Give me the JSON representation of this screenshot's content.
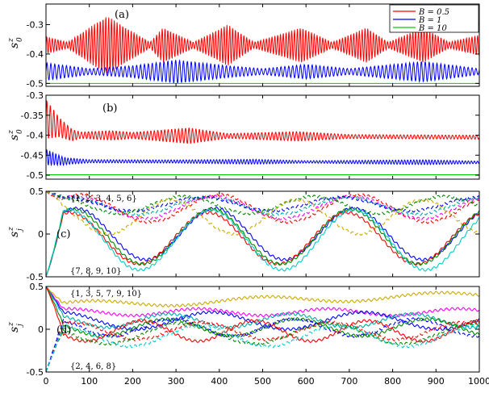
{
  "chart_data": [
    {
      "type": "line",
      "panel_label": "(a)",
      "ylabel": "s",
      "ylabel_sup": "z",
      "ylabel_sub": "0",
      "xlim": [
        0,
        1000
      ],
      "ylim": [
        -0.51,
        -0.23
      ],
      "yticks": [
        -0.3,
        -0.4,
        -0.5
      ],
      "yticklabels": [
        "-0.3",
        "-0.4",
        "-0.5"
      ],
      "legend": {
        "position": "top-right",
        "entries": [
          "B = 0.5",
          "B = 1",
          "B = 10"
        ]
      },
      "series": [
        {
          "name": "B = 0.5",
          "color": "#ff0000",
          "mean": [
            [
              0,
              -0.37
            ],
            [
              1000,
              -0.37
            ]
          ],
          "amplitude": [
            [
              0,
              0.03
            ],
            [
              50,
              0.01
            ],
            [
              140,
              0.1
            ],
            [
              240,
              0.01
            ],
            [
              270,
              0.06
            ],
            [
              340,
              0.01
            ],
            [
              420,
              0.07
            ],
            [
              480,
              0.01
            ],
            [
              590,
              0.06
            ],
            [
              660,
              0.01
            ],
            [
              740,
              0.06
            ],
            [
              790,
              0.01
            ],
            [
              870,
              0.06
            ],
            [
              930,
              0.01
            ],
            [
              1000,
              0.035
            ]
          ],
          "period": 6.5
        },
        {
          "name": "B = 1",
          "color": "#0000ff",
          "mean": [
            [
              0,
              -0.46
            ],
            [
              1000,
              -0.46
            ]
          ],
          "amplitude": [
            [
              0,
              0.03
            ],
            [
              100,
              0.01
            ],
            [
              200,
              0.02
            ],
            [
              300,
              0.04
            ],
            [
              420,
              0.02
            ],
            [
              500,
              0.01
            ],
            [
              600,
              0.025
            ],
            [
              700,
              0.01
            ],
            [
              870,
              0.035
            ],
            [
              1000,
              0.01
            ]
          ],
          "period": 9
        },
        {
          "name": "B = 10",
          "color": "#00cc00",
          "mean": [
            [
              0,
              -0.5
            ],
            [
              1000,
              -0.5
            ]
          ],
          "amplitude": [
            [
              0,
              0
            ],
            [
              1000,
              0
            ]
          ],
          "period": 10
        }
      ]
    },
    {
      "type": "line",
      "panel_label": "(b)",
      "ylabel": "s",
      "ylabel_sup": "z",
      "ylabel_sub": "0",
      "xlim": [
        0,
        1000
      ],
      "ylim": [
        -0.51,
        -0.3
      ],
      "yticks": [
        -0.3,
        -0.35,
        -0.4,
        -0.45,
        -0.5
      ],
      "yticklabels": [
        "-0.3",
        "-0.35",
        "-0.4",
        "-0.45",
        "-0.5"
      ],
      "series": [
        {
          "name": "B = 0.5",
          "color": "#ff0000",
          "mean": [
            [
              0,
              -0.36
            ],
            [
              15,
              -0.37
            ],
            [
              60,
              -0.4
            ],
            [
              1000,
              -0.405
            ]
          ],
          "amplitude": [
            [
              0,
              0.05
            ],
            [
              30,
              0.025
            ],
            [
              80,
              0.008
            ],
            [
              150,
              0.012
            ],
            [
              200,
              0.008
            ],
            [
              330,
              0.02
            ],
            [
              420,
              0.006
            ],
            [
              580,
              0.012
            ],
            [
              700,
              0.005
            ],
            [
              800,
              0.005
            ],
            [
              1000,
              0.005
            ]
          ],
          "period": 8
        },
        {
          "name": "B = 1",
          "color": "#0000ff",
          "mean": [
            [
              0,
              -0.455
            ],
            [
              40,
              -0.465
            ],
            [
              1000,
              -0.468
            ]
          ],
          "amplitude": [
            [
              0,
              0.02
            ],
            [
              50,
              0.008
            ],
            [
              100,
              0.004
            ],
            [
              300,
              0.004
            ],
            [
              480,
              0.006
            ],
            [
              600,
              0.003
            ],
            [
              880,
              0.006
            ],
            [
              1000,
              0.003
            ]
          ],
          "period": 7
        },
        {
          "name": "B = 10",
          "color": "#00cc00",
          "mean": [
            [
              0,
              -0.499
            ],
            [
              1000,
              -0.499
            ]
          ],
          "amplitude": [
            [
              0,
              0
            ],
            [
              1000,
              0
            ]
          ],
          "period": 10
        }
      ]
    },
    {
      "type": "line",
      "panel_label": "(c)",
      "ylabel": "s",
      "ylabel_sup": "z",
      "ylabel_sub": "j",
      "xlim": [
        0,
        1000
      ],
      "ylim": [
        -0.5,
        0.5
      ],
      "yticks": [
        0.5,
        0,
        -0.5
      ],
      "yticklabels": [
        "0.5",
        "0",
        "-0.5"
      ],
      "annotations": [
        "{1, 2, 3, 4, 5, 6}",
        "{7, 8, 9, 10}"
      ],
      "series": [
        {
          "color": "#ff0000",
          "style": "dashed",
          "start": 0.5,
          "mean": 0.3,
          "amp": 0.16,
          "period": 320,
          "phase": 0
        },
        {
          "color": "#ff00ff",
          "style": "dashed",
          "start": 0.5,
          "mean": 0.31,
          "amp": 0.13,
          "period": 320,
          "phase": 0.25
        },
        {
          "color": "#00aaaa",
          "style": "dashed",
          "start": 0.5,
          "mean": 0.33,
          "amp": 0.1,
          "period": 320,
          "phase": 0.5
        },
        {
          "color": "#0000ff",
          "style": "dashed",
          "start": 0.5,
          "mean": 0.35,
          "amp": 0.08,
          "period": 320,
          "phase": 0.8
        },
        {
          "color": "#008800",
          "style": "dashed",
          "start": 0.5,
          "mean": 0.34,
          "amp": 0.1,
          "period": 300,
          "phase": 1.2
        },
        {
          "color": "#ccaa00",
          "style": "dashed",
          "start": 0.5,
          "mean": 0.2,
          "amp": 0.2,
          "period": 290,
          "phase": 1.6
        },
        {
          "color": "#0000ff",
          "style": "solid",
          "start": -0.5,
          "mean": 0.0,
          "amp": 0.3,
          "period": 320,
          "phase": 0.2
        },
        {
          "color": "#ff0000",
          "style": "solid",
          "start": -0.5,
          "mean": -0.05,
          "amp": 0.3,
          "period": 320,
          "phase": 0.5
        },
        {
          "color": "#008800",
          "style": "solid",
          "start": -0.5,
          "mean": -0.03,
          "amp": 0.32,
          "period": 320,
          "phase": 0.35
        },
        {
          "color": "#00cccc",
          "style": "solid",
          "start": -0.5,
          "mean": -0.07,
          "amp": 0.35,
          "period": 330,
          "phase": 0.6
        }
      ]
    },
    {
      "type": "line",
      "panel_label": "(d)",
      "ylabel": "s",
      "ylabel_sup": "z",
      "ylabel_sub": "j",
      "xlabel": "",
      "xlim": [
        0,
        1000
      ],
      "ylim": [
        -0.5,
        0.5
      ],
      "xticks": [
        0,
        100,
        200,
        300,
        400,
        500,
        600,
        700,
        800,
        900,
        1000
      ],
      "xticklabels": [
        "0",
        "100",
        "200",
        "300",
        "400",
        "500",
        "600",
        "700",
        "800",
        "900",
        "1000"
      ],
      "yticks": [
        0.5,
        0,
        -0.5
      ],
      "yticklabels": [
        "0.5",
        "0",
        "-0.5"
      ],
      "annotations": [
        "{1, 3, 5, 7, 9, 10}",
        "{2, 4, 6, 8}"
      ],
      "series": [
        {
          "color": "#ccaa00",
          "style": "solid",
          "start": 0.5,
          "mean": 0.28,
          "amp": 0.04,
          "period": 400,
          "phase": 0,
          "drift": 0.12
        },
        {
          "color": "#ff00ff",
          "style": "solid",
          "start": 0.5,
          "mean": 0.2,
          "amp": 0.04,
          "period": 300,
          "phase": 0.5,
          "drift": 0
        },
        {
          "color": "#0000ff",
          "style": "solid",
          "start": 0.5,
          "mean": 0.1,
          "amp": 0.1,
          "period": 350,
          "phase": 1.0,
          "drift": 0
        },
        {
          "color": "#00aaaa",
          "style": "solid",
          "start": 0.5,
          "mean": 0.1,
          "amp": 0.08,
          "period": 280,
          "phase": 1.5,
          "drift": 0
        },
        {
          "color": "#008800",
          "style": "solid",
          "start": 0.5,
          "mean": 0.02,
          "amp": 0.1,
          "period": 300,
          "phase": 2.0,
          "drift": 0
        },
        {
          "color": "#ff0000",
          "style": "solid",
          "start": 0.5,
          "mean": -0.02,
          "amp": 0.12,
          "period": 260,
          "phase": 2.5,
          "drift": 0
        },
        {
          "color": "#ff0000",
          "style": "dashed",
          "start": -0.5,
          "mean": -0.02,
          "amp": 0.1,
          "period": 300,
          "phase": 0.3,
          "drift": 0
        },
        {
          "color": "#0000ff",
          "style": "dashed",
          "start": -0.5,
          "mean": 0.02,
          "amp": 0.1,
          "period": 280,
          "phase": 1.3,
          "drift": 0
        },
        {
          "color": "#008800",
          "style": "dashed",
          "start": -0.5,
          "mean": -0.05,
          "amp": 0.12,
          "period": 340,
          "phase": 2.1,
          "drift": 0
        },
        {
          "color": "#00cccc",
          "style": "dashed",
          "start": -0.5,
          "mean": -0.08,
          "amp": 0.12,
          "period": 320,
          "phase": 0.9,
          "drift": 0
        }
      ]
    }
  ]
}
